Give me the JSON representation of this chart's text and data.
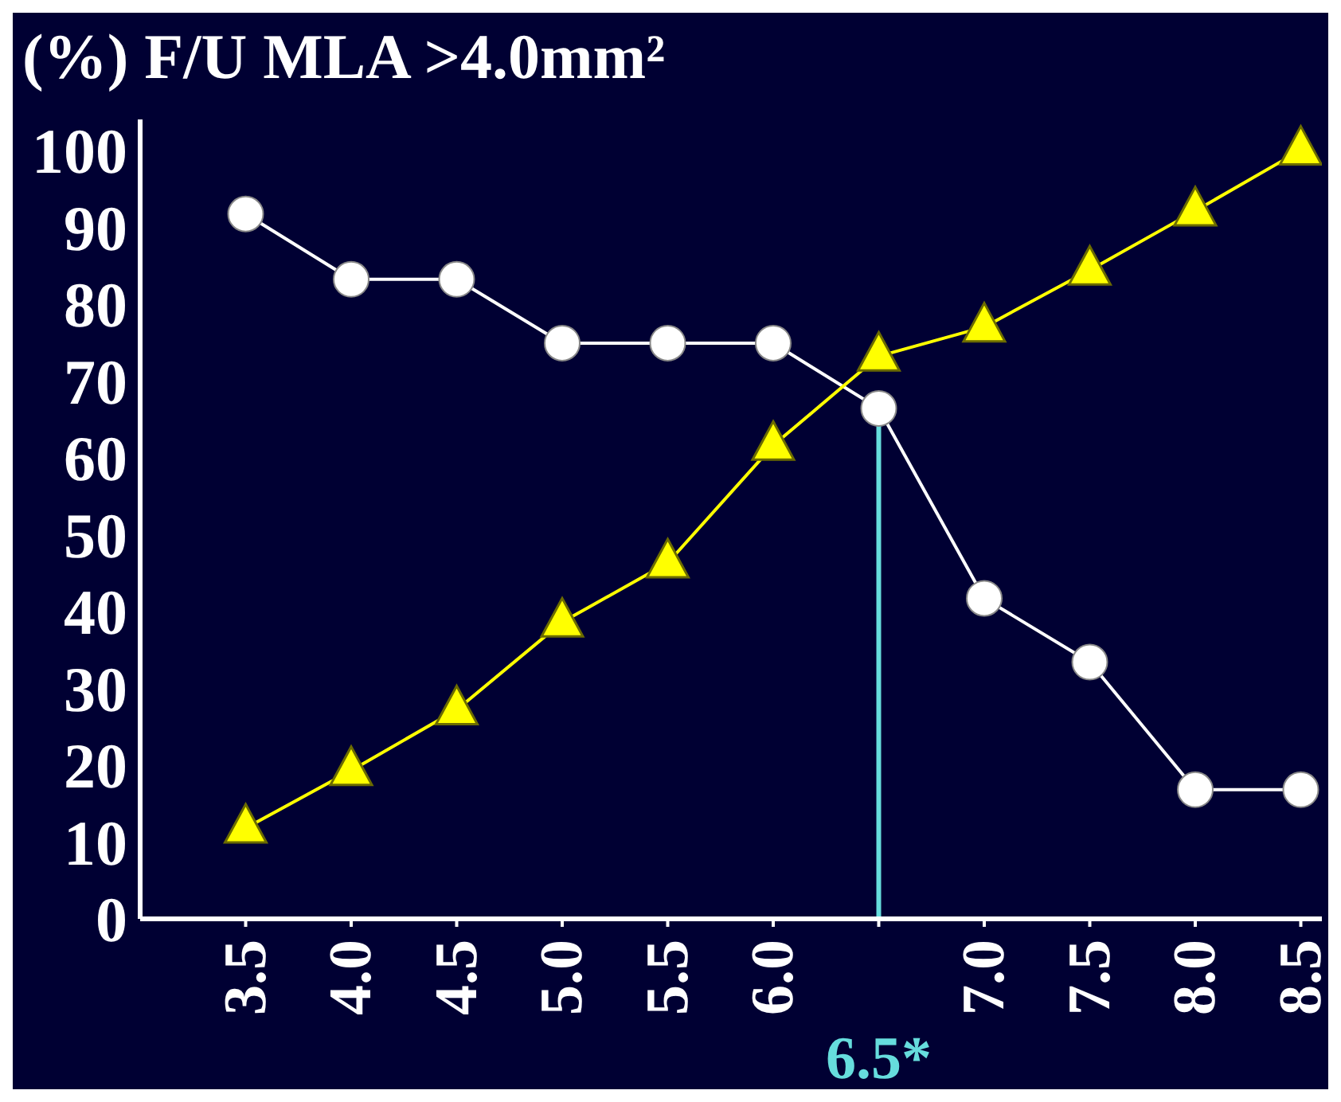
{
  "chart_data": {
    "type": "line",
    "title": "(%) F/U MLA >4.0mm²",
    "x": [
      3.5,
      4.0,
      4.5,
      5.0,
      5.5,
      6.0,
      6.5,
      7.0,
      7.5,
      8.0,
      8.5
    ],
    "series": [
      {
        "color": "#ffffff",
        "marker": "circle",
        "values": [
          91.7,
          83.2,
          83.2,
          74.9,
          74.9,
          74.9,
          66.4,
          41.7,
          33.4,
          16.8,
          16.8
        ]
      },
      {
        "color": "#ffff00",
        "marker": "triangle",
        "values": [
          11.8,
          19.3,
          27.2,
          38.6,
          46.3,
          61.6,
          73.2,
          77.0,
          84.4,
          92.1,
          100
        ]
      }
    ],
    "xlim": [
      3.0,
      8.6
    ],
    "xticks": [
      3.5,
      {
        "value": 4,
        "label": "4.0"
      },
      4.5,
      {
        "value": 5,
        "label": "5.0"
      },
      5.5,
      {
        "value": 6,
        "label": "6.0"
      },
      {
        "value": 6.5,
        "label": null
      },
      {
        "value": 7,
        "label": "7.0"
      },
      7.5,
      {
        "value": 8,
        "label": "8.0"
      },
      8.5
    ],
    "ylim": [
      0,
      104
    ],
    "yticks": [
      0,
      10,
      20,
      30,
      40,
      50,
      60,
      70,
      80,
      90,
      100
    ],
    "ref_lines": [
      {
        "axis": "x",
        "value": 6.5,
        "label": "6.5*",
        "color": "#66dddd"
      }
    ],
    "grid": false,
    "legend": false
  }
}
